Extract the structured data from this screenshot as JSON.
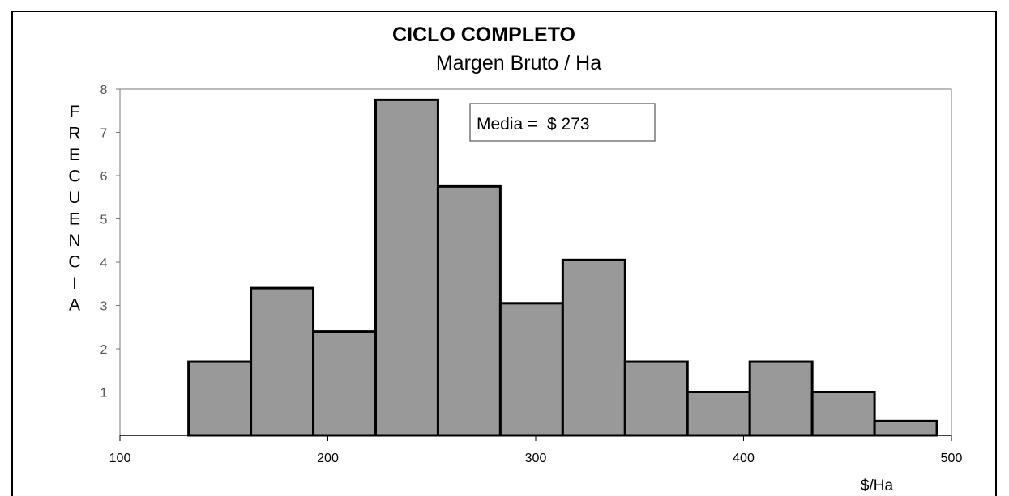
{
  "chart_data": {
    "type": "bar",
    "title": "CICLO COMPLETO",
    "subtitle": "Margen Bruto / Ha",
    "xlabel": "$/Ha",
    "ylabel": "FRECUENCIA",
    "xlim": [
      100,
      500
    ],
    "ylim": [
      0,
      8
    ],
    "xticks": [
      "100",
      "200",
      "300",
      "400",
      "500"
    ],
    "yticks": [
      "1",
      "2",
      "3",
      "4",
      "5",
      "6",
      "7",
      "8"
    ],
    "bin_edges": [
      133,
      163,
      193,
      223,
      253,
      283,
      313,
      343,
      373,
      403,
      433,
      463,
      493
    ],
    "values": [
      1.7,
      3.4,
      2.4,
      7.75,
      5.75,
      3.05,
      4.05,
      1.7,
      1.0,
      1.7,
      1.0,
      0.33
    ],
    "annotation": "Media =  $ 273",
    "bar_color": "#999999",
    "grid": false
  }
}
